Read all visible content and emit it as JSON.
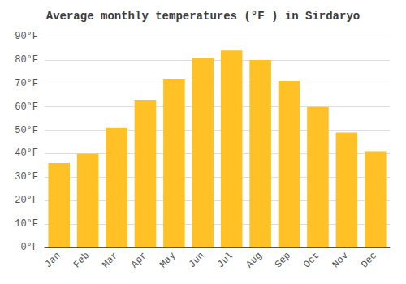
{
  "chart_data": {
    "type": "bar",
    "title": "Average monthly temperatures (°F ) in Sirdaryo",
    "categories": [
      "Jan",
      "Feb",
      "Mar",
      "Apr",
      "May",
      "Jun",
      "Jul",
      "Aug",
      "Sep",
      "Oct",
      "Nov",
      "Dec"
    ],
    "values": [
      36,
      40,
      51,
      63,
      72,
      81,
      84,
      80,
      71,
      60,
      49,
      41
    ],
    "color": "#FFC125",
    "ylim": [
      0,
      90
    ],
    "yticks": [
      {
        "value": 0,
        "label": "0°F"
      },
      {
        "value": 10,
        "label": "10°F"
      },
      {
        "value": 20,
        "label": "20°F"
      },
      {
        "value": 30,
        "label": "30°F"
      },
      {
        "value": 40,
        "label": "40°F"
      },
      {
        "value": 50,
        "label": "50°F"
      },
      {
        "value": 60,
        "label": "60°F"
      },
      {
        "value": 70,
        "label": "70°F"
      },
      {
        "value": 80,
        "label": "80°F"
      },
      {
        "value": 90,
        "label": "90°F"
      }
    ],
    "grid": true
  }
}
